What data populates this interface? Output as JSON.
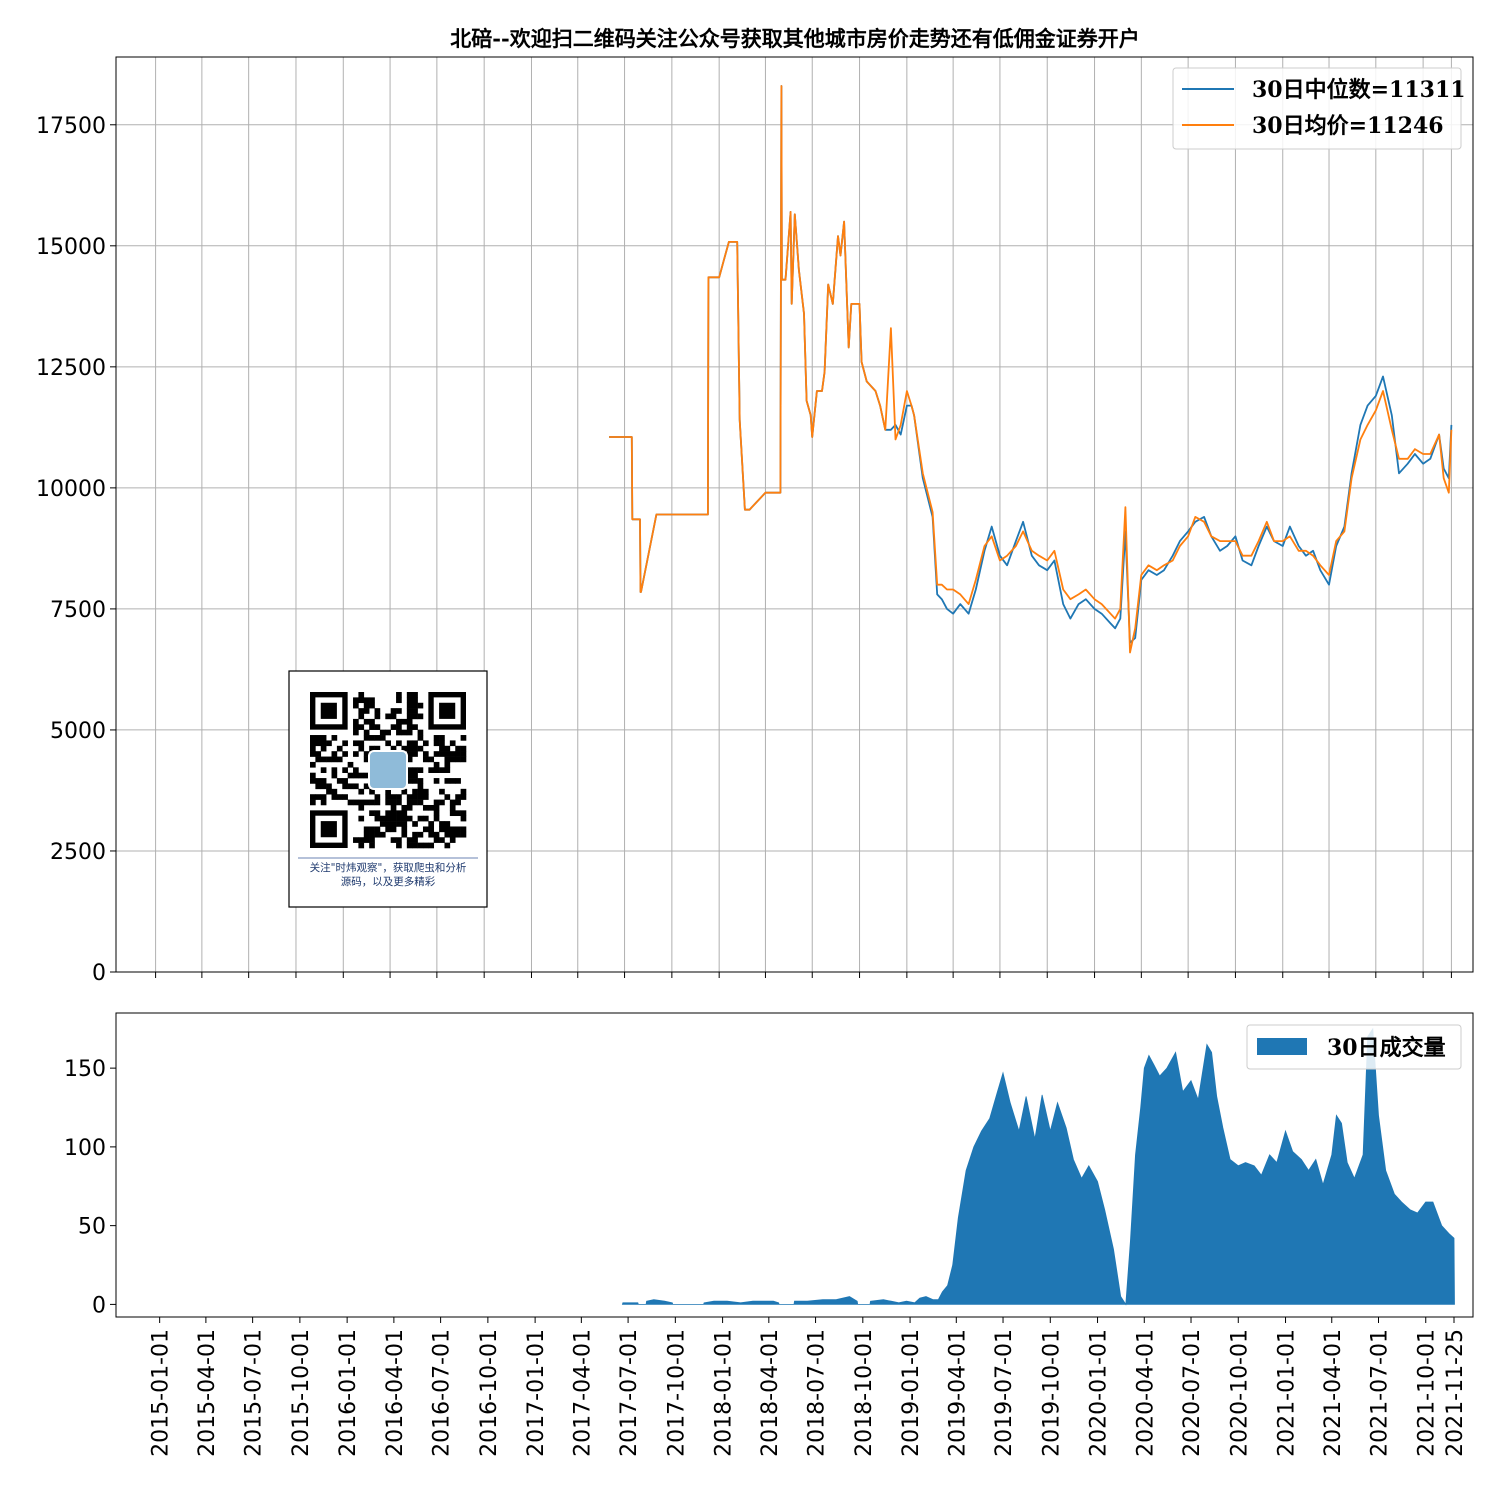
{
  "chart_data": [
    {
      "type": "line",
      "title": "北碚--欢迎扫二维码关注公众号获取其他城市房价走势还有低佣金证券开户",
      "xlabel": "",
      "ylabel": "",
      "ylim": [
        0,
        18900
      ],
      "yticks": [
        0,
        2500,
        5000,
        7500,
        10000,
        12500,
        15000,
        17500
      ],
      "grid": true,
      "legend_position": "upper right",
      "series": [
        {
          "name": "30日中位数=11311",
          "color": "#1f77b4",
          "x": [
            "2017-06-01",
            "2017-06-20",
            "2017-06-21",
            "2017-07-15",
            "2017-07-16",
            "2017-07-31",
            "2017-08-01",
            "2017-08-02",
            "2017-09-01",
            "2017-12-10",
            "2017-12-11",
            "2018-01-01",
            "2018-01-10",
            "2018-01-20",
            "2018-02-05",
            "2018-02-10",
            "2018-02-20",
            "2018-03-01",
            "2018-04-01",
            "2018-04-30",
            "2018-05-02",
            "2018-05-03",
            "2018-05-10",
            "2018-05-20",
            "2018-05-22",
            "2018-05-28",
            "2018-06-05",
            "2018-06-15",
            "2018-06-20",
            "2018-06-28",
            "2018-07-01",
            "2018-07-10",
            "2018-07-20",
            "2018-07-25",
            "2018-08-01",
            "2018-08-10",
            "2018-08-15",
            "2018-08-20",
            "2018-08-25",
            "2018-09-01",
            "2018-09-10",
            "2018-09-15",
            "2018-10-01",
            "2018-10-05",
            "2018-10-15",
            "2018-11-01",
            "2018-11-10",
            "2018-11-20",
            "2018-12-01",
            "2018-12-10",
            "2018-12-20",
            "2019-01-01",
            "2019-01-10",
            "2019-01-15",
            "2019-02-01",
            "2019-02-20",
            "2019-03-01",
            "2019-03-10",
            "2019-03-20",
            "2019-04-01",
            "2019-04-15",
            "2019-05-01",
            "2019-05-15",
            "2019-06-01",
            "2019-06-15",
            "2019-07-01",
            "2019-07-15",
            "2019-08-01",
            "2019-08-15",
            "2019-09-01",
            "2019-09-15",
            "2019-10-01",
            "2019-10-15",
            "2019-11-01",
            "2019-11-15",
            "2019-12-01",
            "2019-12-15",
            "2020-01-01",
            "2020-01-15",
            "2020-02-01",
            "2020-02-10",
            "2020-02-20",
            "2020-03-01",
            "2020-03-10",
            "2020-03-20",
            "2020-04-01",
            "2020-04-15",
            "2020-05-01",
            "2020-05-15",
            "2020-06-01",
            "2020-06-15",
            "2020-07-01",
            "2020-07-15",
            "2020-08-01",
            "2020-08-15",
            "2020-09-01",
            "2020-09-15",
            "2020-10-01",
            "2020-10-15",
            "2020-11-01",
            "2020-11-15",
            "2020-12-01",
            "2020-12-15",
            "2021-01-01",
            "2021-01-15",
            "2021-02-01",
            "2021-02-15",
            "2021-03-01",
            "2021-03-15",
            "2021-04-01",
            "2021-04-15",
            "2021-05-01",
            "2021-05-15",
            "2021-06-01",
            "2021-06-15",
            "2021-07-01",
            "2021-07-15",
            "2021-08-01",
            "2021-08-15",
            "2021-09-01",
            "2021-09-15",
            "2021-10-01",
            "2021-10-15",
            "2021-11-01",
            "2021-11-10",
            "2021-11-20",
            "2021-11-25"
          ],
          "y": [
            11050,
            11050,
            11050,
            11050,
            9350,
            9350,
            7850,
            7850,
            9450,
            9450,
            14350,
            14350,
            14700,
            15080,
            15080,
            11400,
            9550,
            9550,
            9900,
            9900,
            18300,
            14300,
            14300,
            15700,
            13800,
            15650,
            14500,
            13600,
            11800,
            11500,
            11050,
            12000,
            12000,
            12400,
            14200,
            13800,
            14500,
            15200,
            14800,
            15500,
            12900,
            13800,
            13800,
            12600,
            12200,
            12000,
            11700,
            11200,
            11200,
            11300,
            11100,
            11700,
            11700,
            11500,
            10200,
            9400,
            7800,
            7700,
            7500,
            7400,
            7600,
            7400,
            7900,
            8700,
            9200,
            8600,
            8400,
            8900,
            9300,
            8600,
            8400,
            8300,
            8500,
            7600,
            7300,
            7600,
            7700,
            7500,
            7400,
            7200,
            7100,
            7300,
            9100,
            6800,
            6900,
            8100,
            8300,
            8200,
            8300,
            8600,
            8900,
            9100,
            9300,
            9400,
            9000,
            8700,
            8800,
            9000,
            8500,
            8400,
            8800,
            9200,
            8900,
            8800,
            9200,
            8800,
            8600,
            8700,
            8300,
            8000,
            8800,
            9200,
            10300,
            11300,
            11700,
            11900,
            12300,
            11500,
            10300,
            10500,
            10700,
            10500,
            10600,
            11100,
            10400,
            10200,
            11300
          ]
        },
        {
          "name": "30日均价=11246",
          "color": "#ff7f0e",
          "x": [
            "2017-06-01",
            "2017-06-20",
            "2017-06-21",
            "2017-07-15",
            "2017-07-16",
            "2017-07-31",
            "2017-08-01",
            "2017-08-02",
            "2017-09-01",
            "2017-12-10",
            "2017-12-11",
            "2018-01-01",
            "2018-01-10",
            "2018-01-20",
            "2018-02-05",
            "2018-02-10",
            "2018-02-20",
            "2018-03-01",
            "2018-04-01",
            "2018-04-30",
            "2018-05-02",
            "2018-05-03",
            "2018-05-10",
            "2018-05-20",
            "2018-05-22",
            "2018-05-28",
            "2018-06-05",
            "2018-06-15",
            "2018-06-20",
            "2018-06-28",
            "2018-07-01",
            "2018-07-10",
            "2018-07-20",
            "2018-07-25",
            "2018-08-01",
            "2018-08-10",
            "2018-08-15",
            "2018-08-20",
            "2018-08-25",
            "2018-09-01",
            "2018-09-10",
            "2018-09-15",
            "2018-10-01",
            "2018-10-05",
            "2018-10-15",
            "2018-11-01",
            "2018-11-10",
            "2018-11-20",
            "2018-12-01",
            "2018-12-10",
            "2018-12-20",
            "2019-01-01",
            "2019-01-10",
            "2019-01-15",
            "2019-02-01",
            "2019-02-20",
            "2019-03-01",
            "2019-03-10",
            "2019-03-20",
            "2019-04-01",
            "2019-04-15",
            "2019-05-01",
            "2019-05-15",
            "2019-06-01",
            "2019-06-15",
            "2019-07-01",
            "2019-07-15",
            "2019-08-01",
            "2019-08-15",
            "2019-09-01",
            "2019-09-15",
            "2019-10-01",
            "2019-10-15",
            "2019-11-01",
            "2019-11-15",
            "2019-12-01",
            "2019-12-15",
            "2020-01-01",
            "2020-01-15",
            "2020-02-01",
            "2020-02-10",
            "2020-02-20",
            "2020-03-01",
            "2020-03-10",
            "2020-03-20",
            "2020-04-01",
            "2020-04-15",
            "2020-05-01",
            "2020-05-15",
            "2020-06-01",
            "2020-06-15",
            "2020-07-01",
            "2020-07-15",
            "2020-08-01",
            "2020-08-15",
            "2020-09-01",
            "2020-09-15",
            "2020-10-01",
            "2020-10-15",
            "2020-11-01",
            "2020-11-15",
            "2020-12-01",
            "2020-12-15",
            "2021-01-01",
            "2021-01-15",
            "2021-02-01",
            "2021-02-15",
            "2021-03-01",
            "2021-03-15",
            "2021-04-01",
            "2021-04-15",
            "2021-05-01",
            "2021-05-15",
            "2021-06-01",
            "2021-06-15",
            "2021-07-01",
            "2021-07-15",
            "2021-08-01",
            "2021-08-15",
            "2021-09-01",
            "2021-09-15",
            "2021-10-01",
            "2021-10-15",
            "2021-11-01",
            "2021-11-10",
            "2021-11-20",
            "2021-11-25"
          ],
          "y": [
            11050,
            11050,
            11050,
            11050,
            9350,
            9350,
            7850,
            7850,
            9450,
            9450,
            14350,
            14350,
            14700,
            15080,
            15080,
            11400,
            9550,
            9550,
            9900,
            9900,
            18300,
            14300,
            14300,
            15700,
            13800,
            15650,
            14500,
            13600,
            11800,
            11500,
            11050,
            12000,
            12000,
            12400,
            14200,
            13800,
            14500,
            15200,
            14800,
            15500,
            12900,
            13800,
            13800,
            12600,
            12200,
            12000,
            11700,
            11200,
            13300,
            11000,
            11300,
            12000,
            11700,
            11500,
            10300,
            9500,
            8000,
            8000,
            7900,
            7900,
            7800,
            7600,
            8100,
            8800,
            9000,
            8500,
            8600,
            8800,
            9100,
            8700,
            8600,
            8500,
            8700,
            7900,
            7700,
            7800,
            7900,
            7700,
            7600,
            7400,
            7300,
            7500,
            9600,
            6600,
            7100,
            8200,
            8400,
            8300,
            8400,
            8500,
            8800,
            9000,
            9400,
            9300,
            9000,
            8900,
            8900,
            8900,
            8600,
            8600,
            8900,
            9300,
            8900,
            8900,
            9000,
            8700,
            8700,
            8600,
            8400,
            8200,
            8900,
            9100,
            10200,
            11000,
            11300,
            11600,
            12000,
            11200,
            10600,
            10600,
            10800,
            10700,
            10700,
            11100,
            10200,
            9900,
            11200
          ]
        }
      ]
    },
    {
      "type": "area",
      "ylim": [
        -8,
        185
      ],
      "yticks": [
        0,
        50,
        100,
        150
      ],
      "xticks": [
        "2015-01-01",
        "2015-04-01",
        "2015-07-01",
        "2015-10-01",
        "2016-01-01",
        "2016-04-01",
        "2016-07-01",
        "2016-10-01",
        "2017-01-01",
        "2017-04-01",
        "2017-07-01",
        "2017-10-01",
        "2018-01-01",
        "2018-04-01",
        "2018-07-01",
        "2018-10-01",
        "2019-01-01",
        "2019-04-01",
        "2019-07-01",
        "2019-10-01",
        "2020-01-01",
        "2020-04-01",
        "2020-07-01",
        "2020-10-01",
        "2021-01-01",
        "2021-04-01",
        "2021-07-01",
        "2021-10-01",
        "2021-11-25"
      ],
      "grid": false,
      "legend_position": "upper right",
      "series": [
        {
          "name": "30日成交量",
          "color": "#1f77b4",
          "x": [
            "2017-06-20",
            "2017-06-21",
            "2017-07-20",
            "2017-07-21",
            "2017-08-05",
            "2017-08-06",
            "2017-08-20",
            "2017-09-10",
            "2017-09-25",
            "2017-09-26",
            "2017-11-25",
            "2017-11-26",
            "2017-12-15",
            "2018-01-10",
            "2018-02-05",
            "2018-03-01",
            "2018-03-20",
            "2018-04-10",
            "2018-04-20",
            "2018-04-21",
            "2018-05-20",
            "2018-05-21",
            "2018-06-15",
            "2018-07-15",
            "2018-08-10",
            "2018-09-05",
            "2018-09-20",
            "2018-09-21",
            "2018-10-15",
            "2018-10-16",
            "2018-11-10",
            "2018-11-25",
            "2018-12-10",
            "2018-12-25",
            "2019-01-10",
            "2019-01-20",
            "2019-02-01",
            "2019-02-15",
            "2019-02-25",
            "2019-03-05",
            "2019-03-15",
            "2019-03-25",
            "2019-04-05",
            "2019-04-20",
            "2019-05-05",
            "2019-05-20",
            "2019-06-05",
            "2019-06-20",
            "2019-07-01",
            "2019-07-15",
            "2019-08-01",
            "2019-08-15",
            "2019-09-01",
            "2019-09-15",
            "2019-10-01",
            "2019-10-15",
            "2019-11-01",
            "2019-11-15",
            "2019-12-01",
            "2019-12-15",
            "2020-01-01",
            "2020-01-15",
            "2020-02-01",
            "2020-02-15",
            "2020-02-25",
            "2020-03-05",
            "2020-03-15",
            "2020-03-25",
            "2020-04-01",
            "2020-04-10",
            "2020-04-20",
            "2020-05-01",
            "2020-05-15",
            "2020-06-01",
            "2020-06-15",
            "2020-07-01",
            "2020-07-15",
            "2020-08-01",
            "2020-08-10",
            "2020-08-20",
            "2020-09-01",
            "2020-09-15",
            "2020-10-01",
            "2020-10-15",
            "2020-11-01",
            "2020-11-15",
            "2020-12-01",
            "2020-12-15",
            "2021-01-01",
            "2021-01-15",
            "2021-02-01",
            "2021-02-15",
            "2021-03-01",
            "2021-03-15",
            "2021-04-01",
            "2021-04-10",
            "2021-04-20",
            "2021-05-01",
            "2021-05-15",
            "2021-06-01",
            "2021-06-10",
            "2021-06-20",
            "2021-07-01",
            "2021-07-15",
            "2021-08-01",
            "2021-08-15",
            "2021-09-01",
            "2021-09-15",
            "2021-10-01",
            "2021-10-15",
            "2021-11-01",
            "2021-11-15",
            "2021-11-25",
            "2021-11-26"
          ],
          "y": [
            0,
            1,
            1,
            0,
            0,
            2,
            3,
            2,
            1,
            0,
            0,
            1,
            2,
            2,
            1,
            2,
            2,
            2,
            1,
            0,
            0,
            2,
            2,
            3,
            3,
            5,
            2,
            0,
            0,
            2,
            3,
            2,
            1,
            2,
            1,
            4,
            5,
            3,
            3,
            8,
            12,
            25,
            55,
            85,
            100,
            110,
            118,
            135,
            147,
            128,
            110,
            132,
            105,
            133,
            110,
            128,
            112,
            92,
            80,
            88,
            78,
            60,
            35,
            5,
            0,
            40,
            95,
            125,
            150,
            158,
            152,
            145,
            150,
            160,
            135,
            142,
            130,
            165,
            160,
            132,
            112,
            92,
            88,
            90,
            88,
            82,
            95,
            90,
            110,
            97,
            92,
            85,
            92,
            76,
            95,
            120,
            115,
            90,
            80,
            95,
            170,
            175,
            120,
            85,
            70,
            65,
            60,
            58,
            65,
            65,
            50,
            45,
            42,
            0
          ]
        }
      ]
    },
    {
      "image": "qr-code",
      "caption_line1": "关注\"时炜观察\"，获取爬虫和分析",
      "caption_line2": "源码，以及更多精彩"
    }
  ]
}
